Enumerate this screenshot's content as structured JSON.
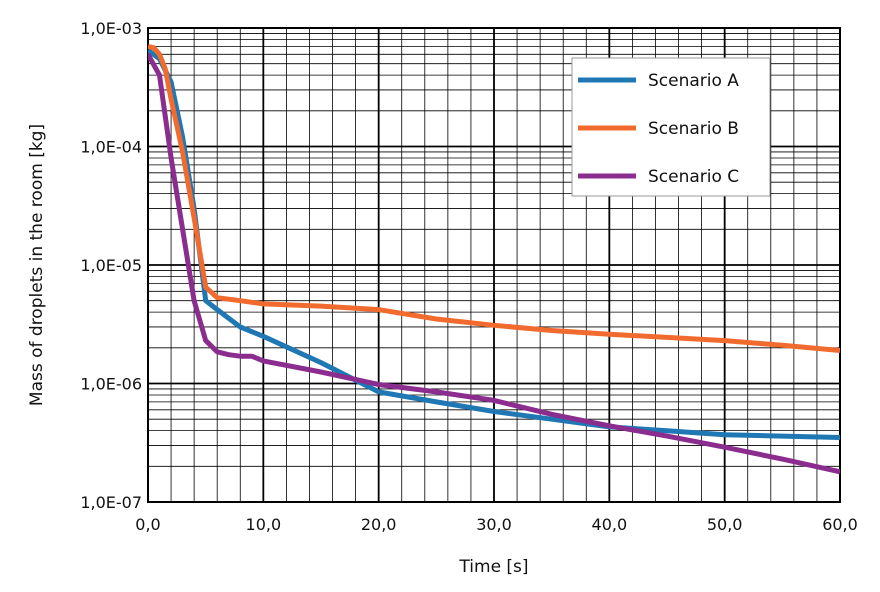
{
  "chart_data": {
    "type": "line",
    "xlabel": "Time [s]",
    "ylabel": "Mass of droplets in the room [kg]",
    "xlim": [
      0,
      60
    ],
    "ylim": [
      1e-07,
      0.001
    ],
    "yscale": "log",
    "grid": true,
    "legend": "top-right",
    "x_ticks": [
      "0,0",
      "10,0",
      "20,0",
      "30,0",
      "40,0",
      "50,0",
      "60,0"
    ],
    "y_ticks": [
      "1,0E-07",
      "1,0E-06",
      "1,0E-05",
      "1,0E-04",
      "1,0E-03"
    ],
    "series": [
      {
        "name": "Scenario A",
        "color": "#1f77b4",
        "points": [
          [
            0,
            0.00065
          ],
          [
            1,
            0.00055
          ],
          [
            2,
            0.00035
          ],
          [
            3,
            0.00012
          ],
          [
            4,
            3e-05
          ],
          [
            5,
            5e-06
          ],
          [
            6,
            4.2e-06
          ],
          [
            8,
            3e-06
          ],
          [
            10,
            2.5e-06
          ],
          [
            15,
            1.5e-06
          ],
          [
            20,
            8.5e-07
          ],
          [
            25,
            7e-07
          ],
          [
            30,
            5.8e-07
          ],
          [
            35,
            5e-07
          ],
          [
            40,
            4.3e-07
          ],
          [
            45,
            4e-07
          ],
          [
            50,
            3.7e-07
          ],
          [
            55,
            3.6e-07
          ],
          [
            60,
            3.5e-07
          ]
        ]
      },
      {
        "name": "Scenario B",
        "color": "#f26b2e",
        "points": [
          [
            0,
            0.0007
          ],
          [
            0.5,
            0.00068
          ],
          [
            1,
            0.0006
          ],
          [
            1.5,
            0.00045
          ],
          [
            2,
            0.00025
          ],
          [
            3,
            9e-05
          ],
          [
            4,
            2.5e-05
          ],
          [
            5,
            6.5e-06
          ],
          [
            6,
            5.3e-06
          ],
          [
            8,
            5e-06
          ],
          [
            10,
            4.7e-06
          ],
          [
            15,
            4.5e-06
          ],
          [
            20,
            4.2e-06
          ],
          [
            25,
            3.5e-06
          ],
          [
            30,
            3.1e-06
          ],
          [
            35,
            2.8e-06
          ],
          [
            40,
            2.6e-06
          ],
          [
            45,
            2.45e-06
          ],
          [
            50,
            2.3e-06
          ],
          [
            55,
            2.1e-06
          ],
          [
            60,
            1.9e-06
          ]
        ]
      },
      {
        "name": "Scenario C",
        "color": "#8b2c8f",
        "points": [
          [
            0,
            0.0006
          ],
          [
            1,
            0.0004
          ],
          [
            2,
            8e-05
          ],
          [
            3,
            2e-05
          ],
          [
            4,
            5e-06
          ],
          [
            5,
            2.3e-06
          ],
          [
            6,
            1.85e-06
          ],
          [
            7,
            1.75e-06
          ],
          [
            8,
            1.7e-06
          ],
          [
            9,
            1.7e-06
          ],
          [
            10,
            1.55e-06
          ],
          [
            15,
            1.25e-06
          ],
          [
            20,
            9.8e-07
          ],
          [
            25,
            8.5e-07
          ],
          [
            30,
            7.2e-07
          ],
          [
            35,
            5.5e-07
          ],
          [
            40,
            4.4e-07
          ],
          [
            45,
            3.6e-07
          ],
          [
            50,
            2.9e-07
          ],
          [
            55,
            2.3e-07
          ],
          [
            60,
            1.8e-07
          ]
        ]
      }
    ]
  }
}
